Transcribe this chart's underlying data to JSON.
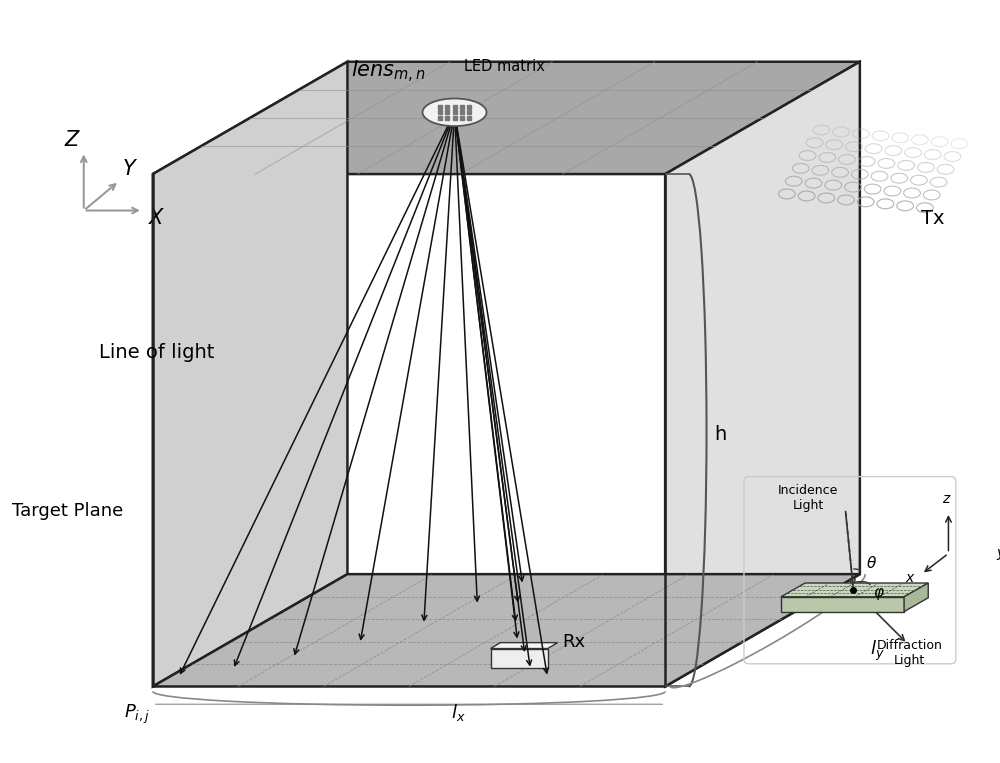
{
  "bg_color": "#ffffff",
  "ceiling_color": "#a8a8a8",
  "left_wall_color": "#d0d0d0",
  "right_wall_color": "#e0e0e0",
  "floor_color": "#b8b8b8",
  "floor_grid_color": "#888888",
  "ceiling_grid_color": "#909090",
  "box_edge_color": "#222222",
  "lens_label": "$\\mathit{lens}_{m,n}$",
  "led_label": "LED matrix",
  "tx_label": "Tx",
  "rx_label": "Rx",
  "h_label": "h",
  "lx_label": "$l_x$",
  "ly_label": "$l_y$",
  "pij_label": "$P_{i,j}$",
  "line_of_light": "Line of light",
  "target_plane": "Target Plane",
  "axes_z": "Z",
  "axes_y": "Y",
  "axes_x": "X",
  "incidence_label": "Incidence\nLight",
  "diffraction_label": "Diffraction\nLight",
  "theta_label": "θ",
  "phi_label": "φ",
  "inset_z": "z",
  "inset_y": "y",
  "inset_x": "x"
}
